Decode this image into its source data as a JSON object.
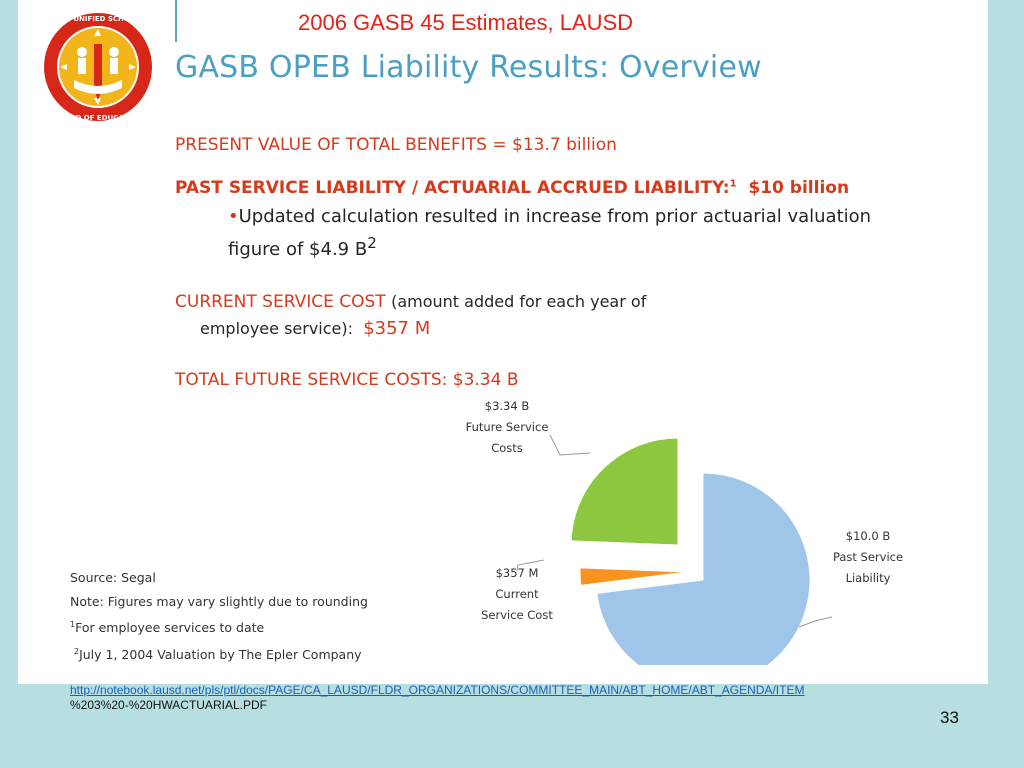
{
  "slide_title": "2006 GASB 45 Estimates, LAUSD",
  "logo": {
    "text_top": "LOS ANGELES UNIFIED SCHOOL DISTRICT",
    "text_bottom": "BOARD OF EDUCATION"
  },
  "heading": "GASB OPEB Liability Results: Overview",
  "lines": {
    "pv": "PRESENT VALUE OF TOTAL BENEFITS = $13.7 billion",
    "psl_main": "PAST SERVICE LIABILITY / ACTUARIAL ACCRUED LIABILITY:",
    "psl_sup": "1",
    "psl_value": "$10 billion",
    "bullet_text": "Updated calculation resulted in increase from prior actuarial valuation figure of $4.9 B",
    "bullet_sup": "2",
    "csc_label": "CURRENT SERVICE COST",
    "csc_desc": "(amount added for each year of",
    "csc_desc2": "employee service):",
    "csc_value": "$357 M",
    "tfsc": "TOTAL FUTURE SERVICE COSTS:  $3.34 B"
  },
  "notes": {
    "source": "Source: Segal",
    "note": "Note: Figures may vary slightly due to rounding",
    "fn1_sup": "1",
    "fn1": "For employee services to date",
    "fn2_sup": "2",
    "fn2": "July 1, 2004 Valuation by The Epler Company"
  },
  "chart_data": {
    "type": "pie",
    "exploded": true,
    "slices": [
      {
        "label_lines": [
          "$10.0 B",
          "Past Service",
          "Liability"
        ],
        "value": 10.0,
        "color": "#9fc5e8"
      },
      {
        "label_lines": [
          "$357 M",
          "Current",
          "Service Cost"
        ],
        "value": 0.357,
        "color": "#f7931e"
      },
      {
        "label_lines": [
          "$3.34 B",
          "Future Service",
          "Costs"
        ],
        "value": 3.34,
        "color": "#8dc63f"
      }
    ]
  },
  "footer": {
    "link": "http://notebook.lausd.net/pls/ptl/docs/PAGE/CA_LAUSD/FLDR_ORGANIZATIONS/COMMITTEE_MAIN/ABT_HOME/ABT_AGENDA/ITEM",
    "link_cont": "%203%20-%20HWACTUARIAL.PDF"
  },
  "page_number": "33"
}
